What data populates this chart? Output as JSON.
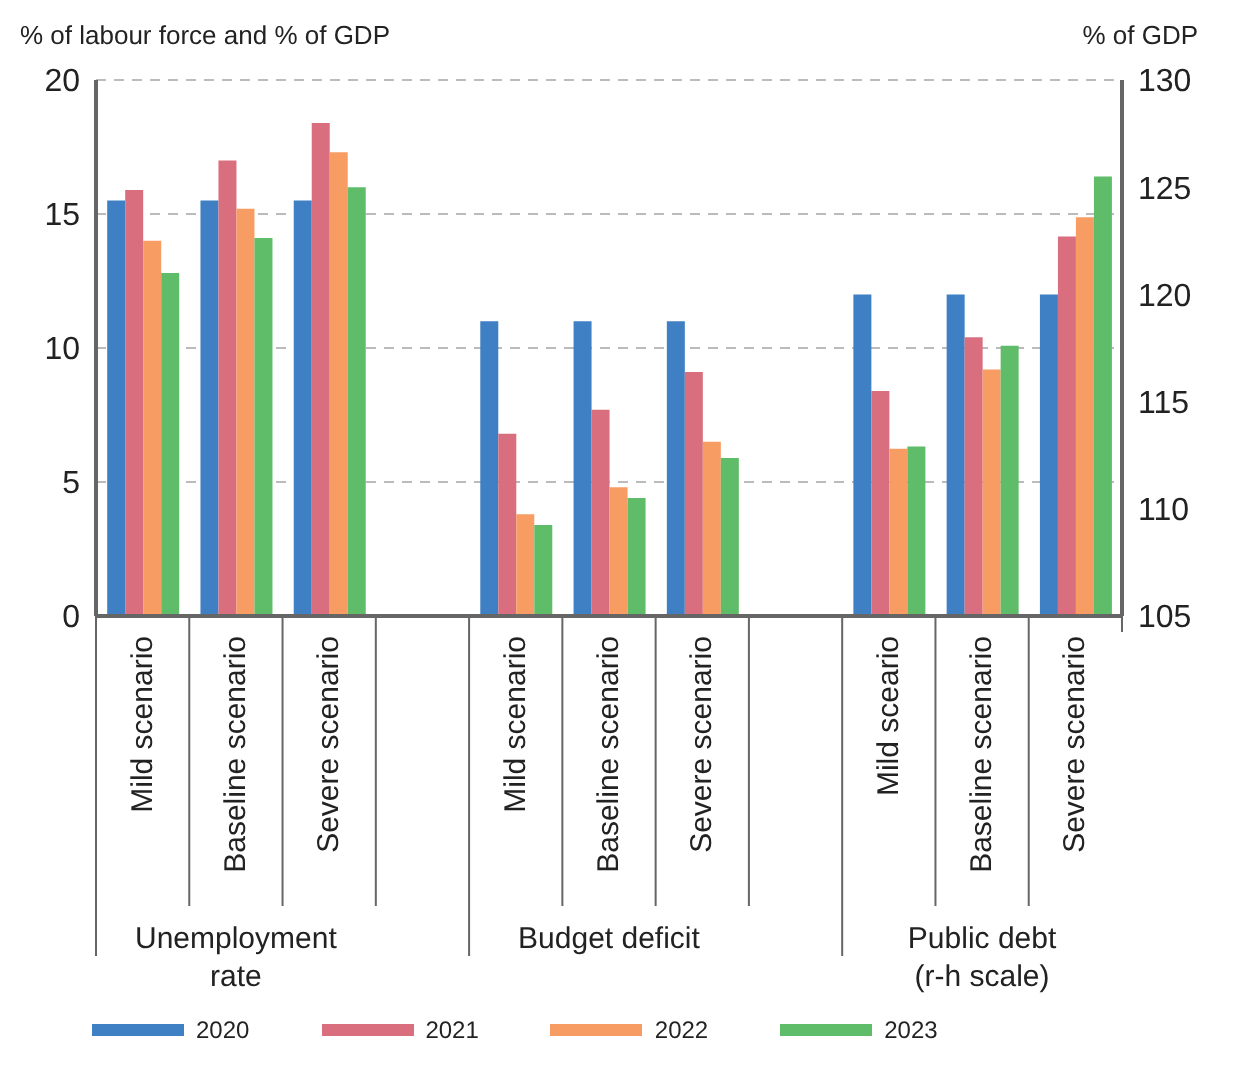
{
  "chart_data": {
    "type": "bar",
    "ylabel": "% of labour force and % of GDP",
    "y2label": "% of GDP",
    "categories": [
      "Mild scenario",
      "Baseline scenario",
      "Severe scenario",
      null,
      "Mild scenario",
      "Baseline scenario",
      "Severe scenario",
      null,
      "Mild sceario",
      "Baseline scenario",
      "Severe scenario"
    ],
    "series": [
      {
        "name": "2020",
        "color": "#3f7fc4",
        "values": [
          15.5,
          15.5,
          15.5,
          null,
          11.0,
          11.0,
          11.0,
          null,
          null,
          null,
          null
        ]
      },
      {
        "name": "2021",
        "color": "#d96f7e",
        "values": [
          15.9,
          17.0,
          18.4,
          null,
          6.8,
          7.7,
          9.1,
          null,
          null,
          null,
          null
        ]
      },
      {
        "name": "2022",
        "color": "#f79c62",
        "values": [
          14.0,
          15.2,
          17.3,
          null,
          3.8,
          4.8,
          6.5,
          null,
          null,
          null,
          null
        ]
      },
      {
        "name": "2023",
        "color": "#5fbd6a",
        "values": [
          12.8,
          14.1,
          16.0,
          null,
          3.4,
          4.4,
          5.9,
          null,
          null,
          null,
          null
        ]
      },
      {
        "color": "#3f7fc4",
        "axis": "y2",
        "values": [
          null,
          null,
          null,
          null,
          null,
          null,
          null,
          null,
          120.0,
          120.0,
          120.0
        ]
      },
      {
        "color": "#d96f7e",
        "axis": "y2",
        "values": [
          null,
          null,
          null,
          null,
          null,
          null,
          null,
          null,
          115.5,
          118.0,
          122.7
        ]
      },
      {
        "color": "#f79c62",
        "axis": "y2",
        "values": [
          null,
          null,
          null,
          null,
          null,
          null,
          null,
          null,
          112.8,
          116.5,
          123.6
        ]
      },
      {
        "color": "#5fbd6a",
        "axis": "y2",
        "values": [
          null,
          null,
          null,
          null,
          null,
          null,
          null,
          null,
          112.9,
          117.6,
          125.5
        ]
      }
    ],
    "ylim": [
      0,
      20
    ],
    "yticks": [
      0,
      5,
      10,
      15,
      20
    ],
    "y2lim": [
      105,
      130
    ],
    "y2ticks": [
      105,
      110,
      115,
      120,
      125,
      130
    ],
    "grid": "y",
    "legend": "bottom",
    "annotations": [
      "Unemployment rate",
      "Budget deficit",
      "Public debt\n(r-h scale)"
    ]
  }
}
